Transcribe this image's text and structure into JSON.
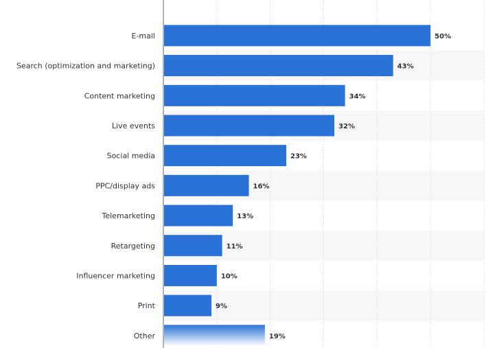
{
  "chart_data": {
    "type": "bar",
    "orientation": "horizontal",
    "categories": [
      "E-mail",
      "Search (optimization and marketing)",
      "Content marketing",
      "Live events",
      "Social media",
      "PPC/display ads",
      "Telemarketing",
      "Retargeting",
      "Influencer marketing",
      "Print",
      "Other"
    ],
    "values": [
      50,
      43,
      34,
      32,
      23,
      16,
      13,
      11,
      10,
      9,
      19
    ],
    "value_labels": [
      "50%",
      "43%",
      "34%",
      "32%",
      "23%",
      "16%",
      "13%",
      "11%",
      "10%",
      "9%",
      "19%"
    ],
    "unit": "%",
    "xlim": [
      0,
      60
    ],
    "title": "",
    "xlabel": "",
    "ylabel": "",
    "grid": true,
    "legend": "none",
    "colors": {
      "bar": "#2a72d8",
      "bar_fade_end": "#ffffff",
      "stripe": "#f7f7f7",
      "grid": "#d8d8d8",
      "axis": "#666666",
      "text": "#333333"
    }
  }
}
